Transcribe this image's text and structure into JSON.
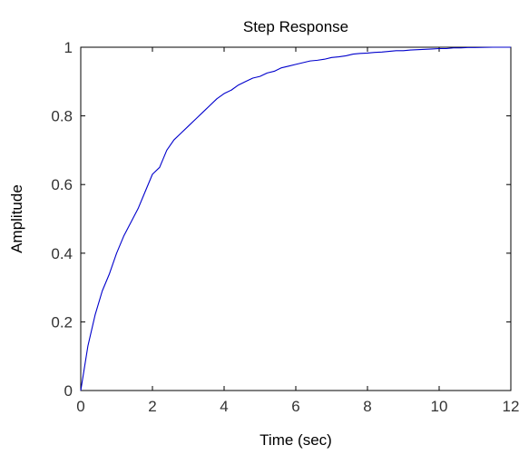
{
  "chart_data": {
    "type": "line",
    "title": "Step Response",
    "xlabel": "Time (sec)",
    "ylabel": "Amplitude",
    "xlim": [
      0,
      12
    ],
    "ylim": [
      0,
      1
    ],
    "xticks": [
      0,
      2,
      4,
      6,
      8,
      10,
      12
    ],
    "yticks": [
      0,
      0.2,
      0.4,
      0.6,
      0.8,
      1
    ],
    "grid": false,
    "legend": "none",
    "reference_line": {
      "y": 1,
      "style": "dashed",
      "color": "#000000"
    },
    "series": [
      {
        "color": "#0000cc",
        "x": [
          0,
          0.2,
          0.4,
          0.6,
          0.8,
          1.0,
          1.2,
          1.4,
          1.6,
          1.8,
          2.0,
          2.2,
          2.4,
          2.6,
          2.8,
          3.0,
          3.2,
          3.4,
          3.6,
          3.8,
          4.0,
          4.2,
          4.4,
          4.6,
          4.8,
          5.0,
          5.2,
          5.4,
          5.6,
          5.8,
          6.0,
          6.2,
          6.4,
          6.6,
          6.8,
          7.0,
          7.2,
          7.4,
          7.6,
          7.8,
          8.0,
          8.2,
          8.4,
          8.6,
          8.8,
          9.0,
          9.2,
          9.4,
          9.6,
          9.8,
          10.0,
          10.2,
          10.4,
          10.6,
          10.8,
          11.0,
          11.5,
          12.0
        ],
        "y": [
          0,
          0.13,
          0.22,
          0.29,
          0.34,
          0.4,
          0.45,
          0.49,
          0.53,
          0.58,
          0.63,
          0.65,
          0.7,
          0.73,
          0.75,
          0.77,
          0.79,
          0.81,
          0.83,
          0.85,
          0.865,
          0.875,
          0.89,
          0.9,
          0.91,
          0.915,
          0.925,
          0.93,
          0.94,
          0.945,
          0.95,
          0.955,
          0.96,
          0.962,
          0.965,
          0.97,
          0.972,
          0.975,
          0.98,
          0.982,
          0.983,
          0.985,
          0.986,
          0.988,
          0.99,
          0.99,
          0.992,
          0.993,
          0.994,
          0.995,
          0.996,
          0.996,
          0.998,
          0.998,
          0.999,
          0.999,
          1.0,
          1.0
        ]
      }
    ]
  }
}
